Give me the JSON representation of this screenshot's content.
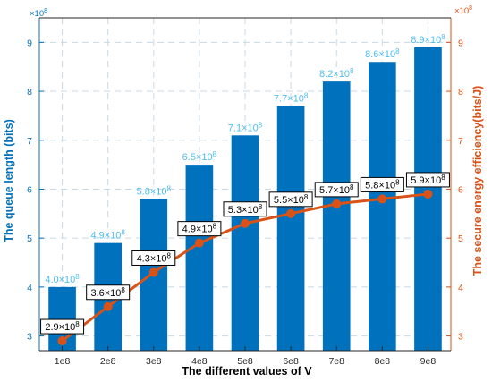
{
  "chart_data": {
    "type": "bar",
    "categories": [
      "1e8",
      "2e8",
      "3e8",
      "4e8",
      "5e8",
      "6e8",
      "7e8",
      "8e8",
      "9e8"
    ],
    "xlabel": "The different values of V",
    "ylabel_left": "The queue length (bits)",
    "ylabel_right": "The secure energy efficiency(bits/J)",
    "left_multiplier": "×10",
    "right_multiplier": "×10",
    "multiplier_exponent": "8",
    "ylim_left": [
      2.7,
      9.5
    ],
    "ylim_right": [
      2.7,
      9.5
    ],
    "yticks_left": [
      3,
      4,
      5,
      6,
      7,
      8,
      9
    ],
    "yticks_right": [
      3,
      4,
      5,
      6,
      7,
      8,
      9
    ],
    "grid": true,
    "series": [
      {
        "name": "",
        "kind": "bar",
        "axis": "left",
        "color": "#0072BD",
        "label_color": "#4DBEEE",
        "values": [
          4.0,
          4.9,
          5.8,
          6.5,
          7.1,
          7.7,
          8.2,
          8.6,
          8.9
        ],
        "labels": [
          "4.0",
          "4.9",
          "5.8",
          "6.5",
          "7.1",
          "7.7",
          "8.2",
          "8.6",
          "8.9"
        ]
      },
      {
        "name": "",
        "kind": "line",
        "axis": "right",
        "color": "#D95319",
        "values": [
          2.9,
          3.6,
          4.3,
          4.9,
          5.3,
          5.5,
          5.7,
          5.8,
          5.9
        ],
        "labels": [
          "2.9",
          "3.6",
          "4.3",
          "4.9",
          "5.3",
          "5.5",
          "5.7",
          "5.8",
          "5.9"
        ]
      }
    ]
  }
}
